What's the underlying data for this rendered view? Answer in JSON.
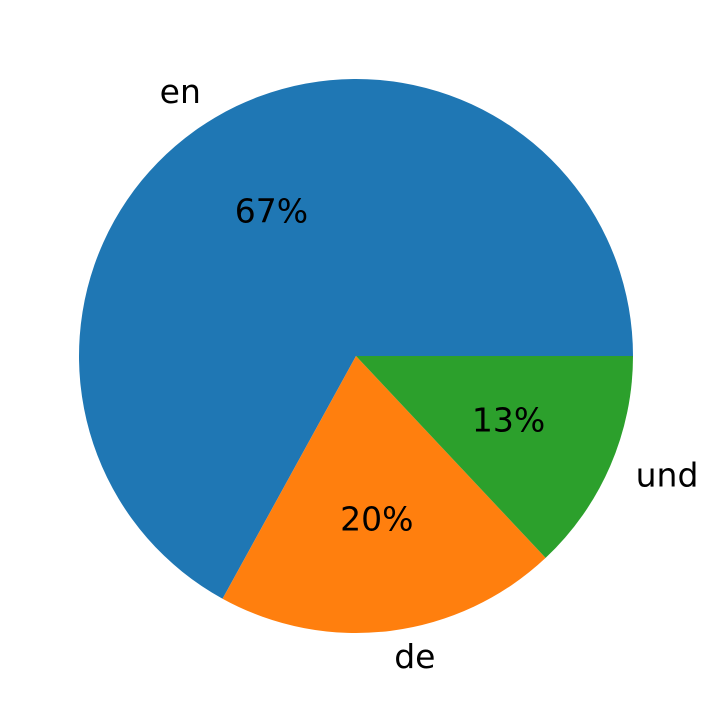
{
  "chart_data": {
    "type": "pie",
    "categories": [
      "en",
      "de",
      "und"
    ],
    "values": [
      67,
      20,
      13
    ],
    "value_labels": [
      "67%",
      "20%",
      "13%"
    ],
    "colors": [
      "#1f77b4",
      "#ff7f0e",
      "#2ca02c"
    ]
  }
}
